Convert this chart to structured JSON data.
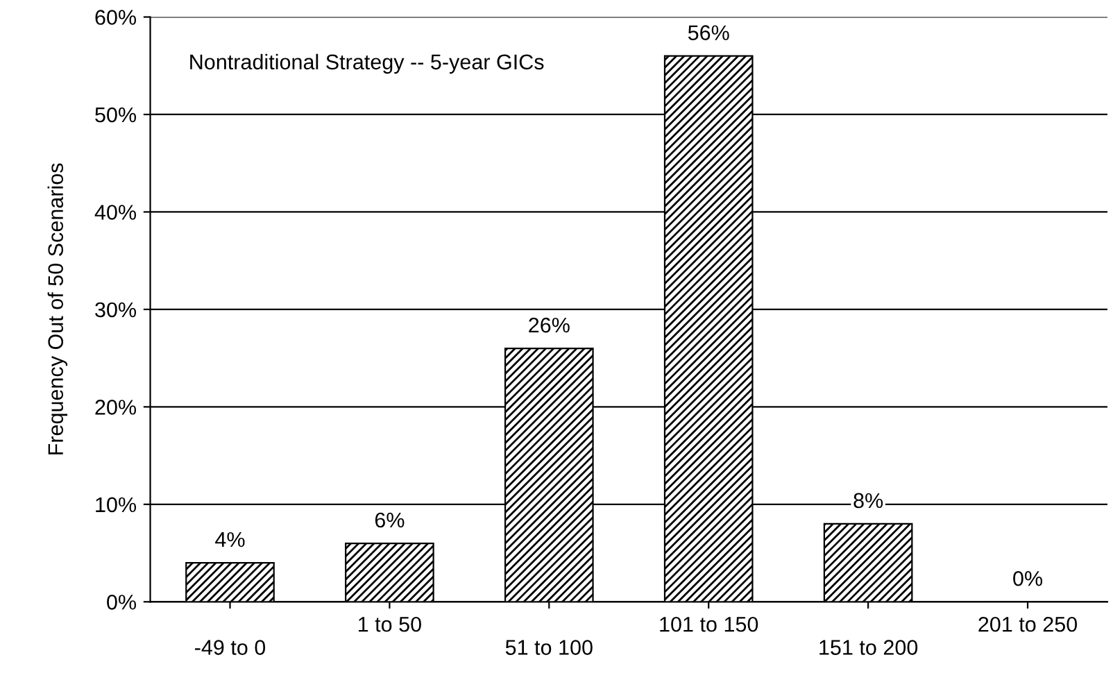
{
  "chart_data": {
    "type": "bar",
    "title": "Nontraditional Strategy -- 5-year GICs",
    "ylabel": "Frequency Out of 50 Scenarios",
    "categories": [
      "-49 to 0",
      "1 to 50",
      "51 to 100",
      "101 to 150",
      "151 to 200",
      "201 to 250"
    ],
    "values": [
      4,
      6,
      26,
      56,
      8,
      0
    ],
    "value_labels": [
      "4%",
      "6%",
      "26%",
      "56%",
      "8%",
      "0%"
    ],
    "color": "#000000",
    "ylim": [
      0,
      60
    ],
    "yticks": [
      {
        "value": 0,
        "label": "0%"
      },
      {
        "value": 10,
        "label": "10%"
      },
      {
        "value": 20,
        "label": "20%"
      },
      {
        "value": 30,
        "label": "30%"
      },
      {
        "value": 40,
        "label": "40%"
      },
      {
        "value": 50,
        "label": "50%"
      },
      {
        "value": 60,
        "label": "60%"
      }
    ],
    "grid": "y",
    "legend": false
  }
}
